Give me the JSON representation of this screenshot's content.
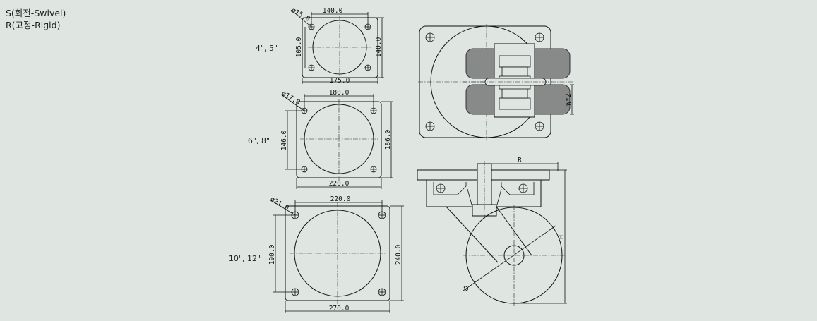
{
  "legend": {
    "swivel": "S(회전-Swivel)",
    "rigid": "R(고정-Rigid)"
  },
  "plates": [
    {
      "sizes": "4\", 5\"",
      "hole": "ø15.0",
      "top_width": "140.0",
      "bottom_width": "175.0",
      "left_height": "105.0",
      "right_height": "140.0"
    },
    {
      "sizes": "6\", 8\"",
      "hole": "ø17.0",
      "top_width": "180.0",
      "bottom_width": "220.0",
      "left_height": "146.0",
      "right_height": "186.0"
    },
    {
      "sizes": "10\", 12\"",
      "hole": "ø21.0",
      "top_width": "220.0",
      "bottom_width": "270.0",
      "left_height": "190.0",
      "right_height": "240.0"
    }
  ],
  "top_view": {
    "wheel_width_label": "W*2"
  },
  "side_view": {
    "radius_label": "R",
    "height_label": "H",
    "diameter_label": "D"
  },
  "colors": {
    "background": "#dfe6e2",
    "wheel": "#888a89",
    "line": "#111111"
  }
}
